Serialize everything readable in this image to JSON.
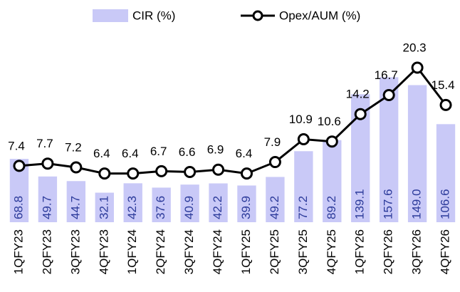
{
  "chart_data": {
    "type": "bar-line",
    "categories": [
      "1QFY23",
      "2QFY23",
      "3QFY23",
      "4QFY23",
      "1QFY24",
      "2QFY24",
      "3QFY24",
      "4QFY24",
      "1QFY25",
      "2QFY25",
      "3QFY25",
      "4QFY25",
      "1QFY26",
      "2QFY26",
      "3QFY26",
      "4QFY26"
    ],
    "series": [
      {
        "name": "CIR (%)",
        "type": "bar",
        "color": "#c9c9f7",
        "values": [
          68.8,
          49.7,
          44.7,
          32.1,
          42.3,
          37.6,
          40.9,
          42.2,
          39.9,
          49.2,
          77.2,
          89.2,
          139.1,
          157.6,
          149,
          106.6
        ],
        "value_labels": [
          "68.8",
          "49.7",
          "44.7",
          "32.1",
          "42.3",
          "37.6",
          "40.9",
          "42.2",
          "39.9",
          "49.2",
          "77.2",
          "89.2",
          "139.1",
          "157.6",
          "149.0",
          "106.6"
        ]
      },
      {
        "name": "Opex/AUM (%)",
        "type": "line",
        "axis": "y2",
        "color": "#000000",
        "values": [
          7.4,
          7.7,
          7.2,
          6.4,
          6.4,
          6.7,
          6.6,
          6.9,
          6.4,
          7.9,
          10.9,
          10.6,
          14.2,
          16.7,
          20.3,
          15.4
        ]
      }
    ],
    "ylim": [
      0,
      240
    ],
    "y2lim": [
      0,
      29
    ],
    "legend": "top"
  }
}
